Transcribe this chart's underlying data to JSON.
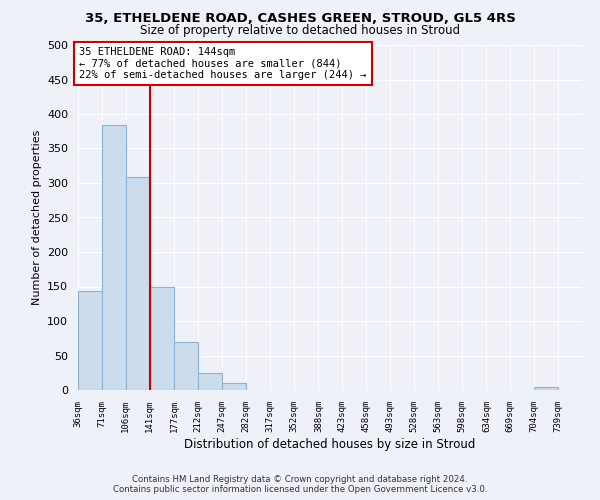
{
  "title": "35, ETHELDENE ROAD, CASHES GREEN, STROUD, GL5 4RS",
  "subtitle": "Size of property relative to detached houses in Stroud",
  "xlabel": "Distribution of detached houses by size in Stroud",
  "ylabel": "Number of detached properties",
  "bin_edges": [
    36,
    71,
    106,
    141,
    177,
    212,
    247,
    282,
    317,
    352,
    388,
    423,
    458,
    493,
    528,
    563,
    598,
    634,
    669,
    704,
    739
  ],
  "bin_labels": [
    "36sqm",
    "71sqm",
    "106sqm",
    "141sqm",
    "177sqm",
    "212sqm",
    "247sqm",
    "282sqm",
    "317sqm",
    "352sqm",
    "388sqm",
    "423sqm",
    "458sqm",
    "493sqm",
    "528sqm",
    "563sqm",
    "598sqm",
    "634sqm",
    "669sqm",
    "704sqm",
    "739sqm"
  ],
  "bar_heights": [
    144,
    384,
    309,
    150,
    70,
    24,
    10,
    0,
    0,
    0,
    0,
    0,
    0,
    0,
    0,
    0,
    0,
    0,
    0,
    5
  ],
  "bar_color": "#ccdcec",
  "bar_edge_color": "#8ab4d4",
  "vline_color": "#cc0000",
  "annotation_title": "35 ETHELDENE ROAD: 144sqm",
  "annotation_line1": "← 77% of detached houses are smaller (844)",
  "annotation_line2": "22% of semi-detached houses are larger (244) →",
  "annotation_box_color": "#cc0000",
  "ylim": [
    0,
    500
  ],
  "yticks": [
    0,
    50,
    100,
    150,
    200,
    250,
    300,
    350,
    400,
    450,
    500
  ],
  "footer_line1": "Contains HM Land Registry data © Crown copyright and database right 2024.",
  "footer_line2": "Contains public sector information licensed under the Open Government Licence v3.0.",
  "background_color": "#eef2f8",
  "plot_background_color": "#eef2f8",
  "grid_color": "#ffffff"
}
